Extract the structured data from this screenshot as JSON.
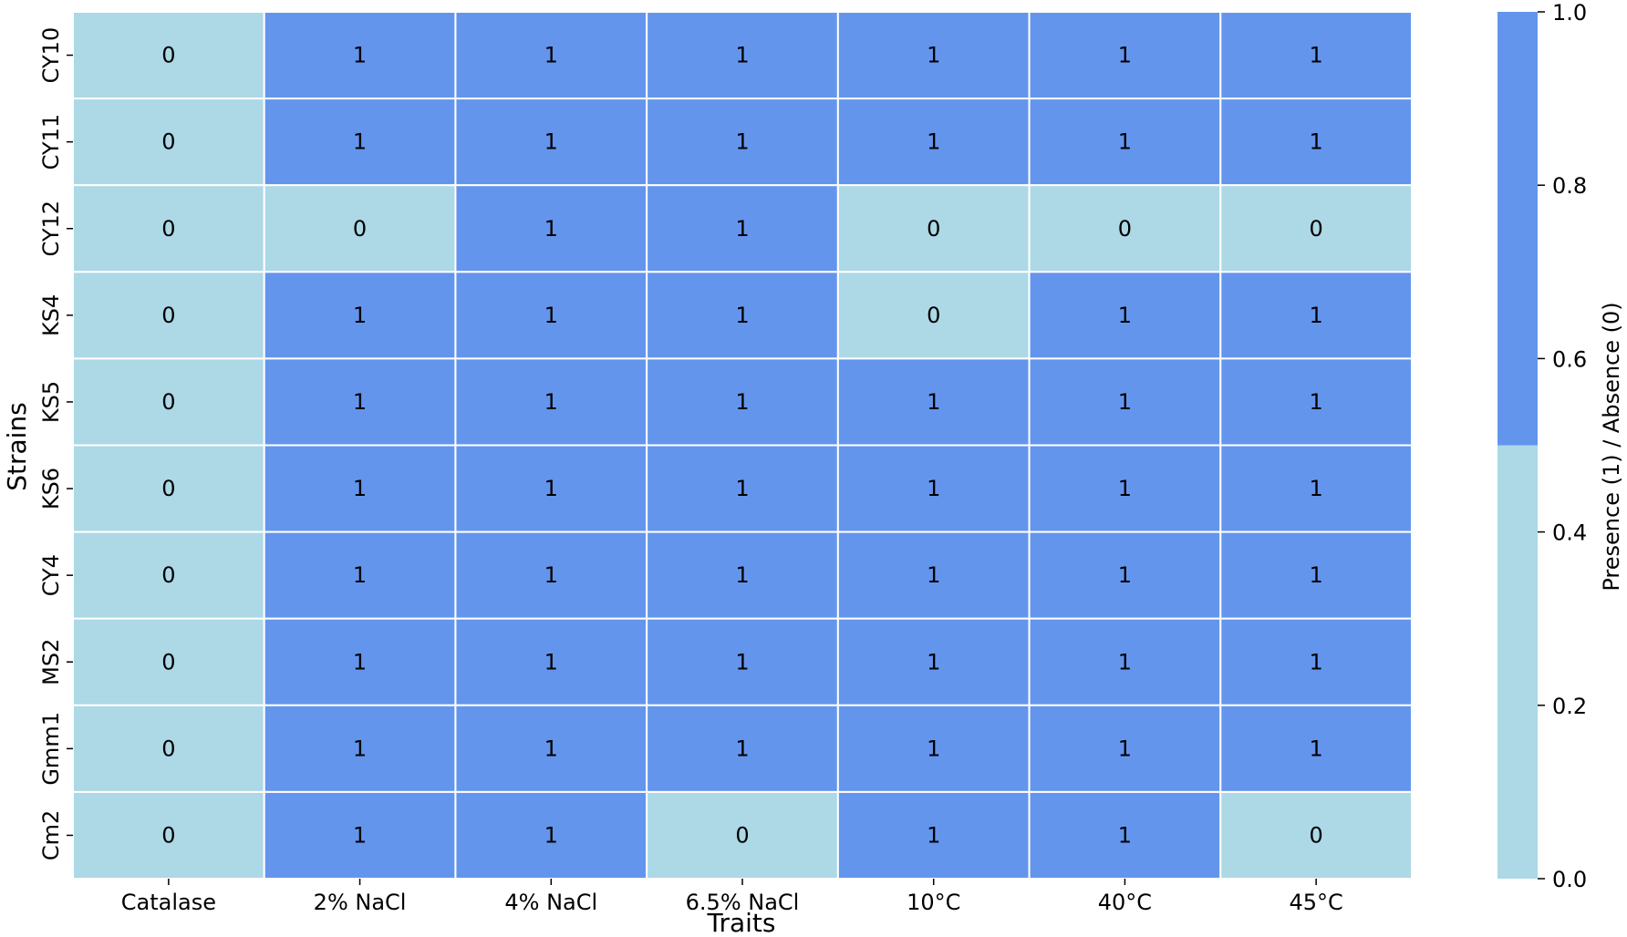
{
  "chart_data": {
    "type": "heatmap",
    "xlabel": "Traits",
    "ylabel": "Strains",
    "x_categories": [
      "Catalase",
      "2% NaCl",
      "4% NaCl",
      "6.5% NaCl",
      "10°C",
      "40°C",
      "45°C"
    ],
    "y_categories": [
      "CY10",
      "CY11",
      "CY12",
      "KS4",
      "KS5",
      "KS6",
      "CY4",
      "MS2",
      "Gmm1",
      "Cm2"
    ],
    "values": [
      [
        0,
        1,
        1,
        1,
        1,
        1,
        1
      ],
      [
        0,
        1,
        1,
        1,
        1,
        1,
        1
      ],
      [
        0,
        0,
        1,
        1,
        0,
        0,
        0
      ],
      [
        0,
        1,
        1,
        1,
        0,
        1,
        1
      ],
      [
        0,
        1,
        1,
        1,
        1,
        1,
        1
      ],
      [
        0,
        1,
        1,
        1,
        1,
        1,
        1
      ],
      [
        0,
        1,
        1,
        1,
        1,
        1,
        1
      ],
      [
        0,
        1,
        1,
        1,
        1,
        1,
        1
      ],
      [
        0,
        1,
        1,
        1,
        1,
        1,
        1
      ],
      [
        0,
        1,
        1,
        0,
        1,
        1,
        0
      ]
    ],
    "colorbar": {
      "label": "Presence (1) / Absence (0)",
      "range": [
        0.0,
        1.0
      ],
      "ticks": [
        "0.0",
        "0.2",
        "0.4",
        "0.6",
        "0.8",
        "1.0"
      ],
      "colors": {
        "absent": "#ADD8E6",
        "present": "#6495ED"
      },
      "threshold": 0.5
    },
    "annotations": true,
    "grid_line_color": "#ffffff"
  }
}
